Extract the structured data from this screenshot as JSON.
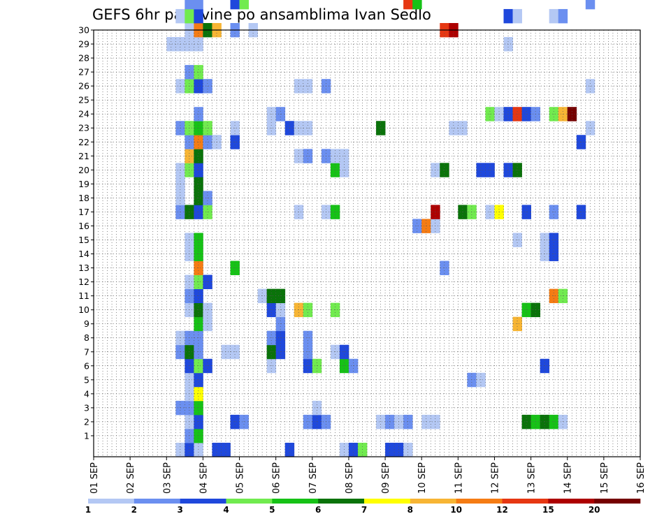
{
  "chart_data": {
    "type": "heatmap",
    "title": "GEFS 6hr padavine po ansamblima Ivan Sedlo",
    "xlabel": "",
    "ylabel": "",
    "x_tick_labels": [
      "01 SEP",
      "02 SEP",
      "03 SEP",
      "04 SEP",
      "05 SEP",
      "06 SEP",
      "07 SEP",
      "08 SEP",
      "09 SEP",
      "10 SEP",
      "11 SEP",
      "12 SEP",
      "13 SEP",
      "14 SEP",
      "15 SEP",
      "16 SEP"
    ],
    "y_tick_labels": [
      "1",
      "2",
      "3",
      "4",
      "5",
      "6",
      "7",
      "8",
      "9",
      "10",
      "11",
      "12",
      "13",
      "14",
      "15",
      "16",
      "17",
      "18",
      "19",
      "20",
      "21",
      "22",
      "23",
      "24",
      "25",
      "26",
      "27",
      "28",
      "29",
      "30"
    ],
    "ylim": [
      0,
      30
    ],
    "x_step_hours": 6,
    "grid": true,
    "colorbar": {
      "labels": [
        "1",
        "2",
        "3",
        "4",
        "5",
        "6",
        "7",
        "8",
        "10",
        "12",
        "15",
        "20"
      ],
      "colors": [
        "#b4c8f4",
        "#6b8ff0",
        "#1f48dc",
        "#71eb4f",
        "#16c216",
        "#0a730a",
        "#ffff00",
        "#f7b534",
        "#f57c14",
        "#e63712",
        "#ad0000",
        "#750000"
      ]
    },
    "cells": [
      [
        0,
        9,
        1
      ],
      [
        0,
        10,
        3
      ],
      [
        0,
        11,
        1
      ],
      [
        0,
        13,
        3
      ],
      [
        0,
        14,
        3
      ],
      [
        0,
        21,
        3
      ],
      [
        0,
        27,
        1
      ],
      [
        0,
        28,
        3
      ],
      [
        0,
        29,
        4
      ],
      [
        0,
        32,
        3
      ],
      [
        0,
        33,
        3
      ],
      [
        0,
        34,
        1
      ],
      [
        1,
        10,
        2
      ],
      [
        1,
        11,
        5
      ],
      [
        2,
        10,
        1
      ],
      [
        2,
        11,
        3
      ],
      [
        2,
        15,
        3
      ],
      [
        2,
        16,
        2
      ],
      [
        2,
        23,
        2
      ],
      [
        2,
        24,
        3
      ],
      [
        2,
        25,
        2
      ],
      [
        2,
        31,
        1
      ],
      [
        2,
        32,
        2
      ],
      [
        2,
        33,
        1
      ],
      [
        2,
        34,
        2
      ],
      [
        2,
        36,
        1
      ],
      [
        2,
        37,
        1
      ],
      [
        2,
        47,
        6
      ],
      [
        2,
        48,
        5
      ],
      [
        2,
        49,
        6
      ],
      [
        2,
        50,
        5
      ],
      [
        2,
        51,
        1
      ],
      [
        3,
        9,
        2
      ],
      [
        3,
        10,
        2
      ],
      [
        3,
        11,
        5
      ],
      [
        3,
        24,
        1
      ],
      [
        4,
        10,
        1
      ],
      [
        4,
        11,
        7
      ],
      [
        5,
        10,
        1
      ],
      [
        5,
        11,
        3
      ],
      [
        5,
        41,
        2
      ],
      [
        5,
        42,
        1
      ],
      [
        6,
        10,
        3
      ],
      [
        6,
        11,
        4
      ],
      [
        6,
        12,
        3
      ],
      [
        6,
        19,
        1
      ],
      [
        6,
        23,
        3
      ],
      [
        6,
        24,
        4
      ],
      [
        6,
        27,
        5
      ],
      [
        6,
        28,
        2
      ],
      [
        6,
        49,
        3
      ],
      [
        7,
        9,
        2
      ],
      [
        7,
        10,
        6
      ],
      [
        7,
        11,
        2
      ],
      [
        7,
        14,
        1
      ],
      [
        7,
        15,
        1
      ],
      [
        7,
        19,
        6
      ],
      [
        7,
        20,
        3
      ],
      [
        7,
        23,
        2
      ],
      [
        7,
        26,
        1
      ],
      [
        7,
        27,
        3
      ],
      [
        8,
        9,
        1
      ],
      [
        8,
        10,
        2
      ],
      [
        8,
        11,
        2
      ],
      [
        8,
        19,
        2
      ],
      [
        8,
        20,
        3
      ],
      [
        8,
        23,
        2
      ],
      [
        9,
        11,
        5
      ],
      [
        9,
        12,
        1
      ],
      [
        9,
        20,
        2
      ],
      [
        9,
        46,
        8
      ],
      [
        10,
        10,
        1
      ],
      [
        10,
        11,
        6
      ],
      [
        10,
        12,
        1
      ],
      [
        10,
        19,
        3
      ],
      [
        10,
        20,
        1
      ],
      [
        10,
        22,
        8
      ],
      [
        10,
        23,
        4
      ],
      [
        10,
        26,
        4
      ],
      [
        10,
        47,
        5
      ],
      [
        10,
        48,
        6
      ],
      [
        11,
        10,
        2
      ],
      [
        11,
        11,
        3
      ],
      [
        11,
        18,
        1
      ],
      [
        11,
        19,
        6
      ],
      [
        11,
        20,
        6
      ],
      [
        11,
        50,
        9
      ],
      [
        11,
        51,
        4
      ],
      [
        12,
        10,
        1
      ],
      [
        12,
        11,
        4
      ],
      [
        12,
        12,
        3
      ],
      [
        13,
        11,
        9
      ],
      [
        13,
        15,
        5
      ],
      [
        13,
        38,
        2
      ],
      [
        14,
        10,
        1
      ],
      [
        14,
        11,
        5
      ],
      [
        14,
        49,
        1
      ],
      [
        14,
        50,
        3
      ],
      [
        15,
        10,
        1
      ],
      [
        15,
        11,
        5
      ],
      [
        15,
        46,
        1
      ],
      [
        15,
        49,
        1
      ],
      [
        15,
        50,
        3
      ],
      [
        16,
        35,
        2
      ],
      [
        16,
        36,
        9
      ],
      [
        16,
        37,
        1
      ],
      [
        17,
        9,
        2
      ],
      [
        17,
        10,
        6
      ],
      [
        17,
        11,
        3
      ],
      [
        17,
        12,
        4
      ],
      [
        17,
        22,
        1
      ],
      [
        17,
        25,
        1
      ],
      [
        17,
        26,
        5
      ],
      [
        17,
        37,
        11
      ],
      [
        17,
        40,
        6
      ],
      [
        17,
        41,
        4
      ],
      [
        17,
        43,
        1
      ],
      [
        17,
        44,
        7
      ],
      [
        17,
        47,
        3
      ],
      [
        17,
        50,
        2
      ],
      [
        17,
        53,
        3
      ],
      [
        18,
        9,
        1
      ],
      [
        18,
        11,
        6
      ],
      [
        18,
        12,
        2
      ],
      [
        19,
        9,
        1
      ],
      [
        19,
        11,
        6
      ],
      [
        20,
        9,
        1
      ],
      [
        20,
        10,
        4
      ],
      [
        20,
        11,
        3
      ],
      [
        20,
        26,
        5
      ],
      [
        20,
        27,
        1
      ],
      [
        20,
        37,
        1
      ],
      [
        20,
        38,
        6
      ],
      [
        20,
        42,
        3
      ],
      [
        20,
        43,
        3
      ],
      [
        20,
        45,
        3
      ],
      [
        20,
        46,
        6
      ],
      [
        21,
        10,
        8
      ],
      [
        21,
        11,
        6
      ],
      [
        21,
        22,
        1
      ],
      [
        21,
        23,
        2
      ],
      [
        21,
        25,
        2
      ],
      [
        21,
        26,
        1
      ],
      [
        21,
        27,
        1
      ],
      [
        22,
        10,
        2
      ],
      [
        22,
        11,
        9
      ],
      [
        22,
        12,
        2
      ],
      [
        22,
        13,
        1
      ],
      [
        22,
        15,
        3
      ],
      [
        22,
        53,
        3
      ],
      [
        23,
        9,
        2
      ],
      [
        23,
        10,
        4
      ],
      [
        23,
        11,
        5
      ],
      [
        23,
        12,
        4
      ],
      [
        23,
        15,
        1
      ],
      [
        23,
        19,
        1
      ],
      [
        23,
        21,
        3
      ],
      [
        23,
        22,
        1
      ],
      [
        23,
        23,
        1
      ],
      [
        23,
        31,
        6
      ],
      [
        23,
        39,
        1
      ],
      [
        23,
        40,
        1
      ],
      [
        23,
        54,
        1
      ],
      [
        24,
        11,
        2
      ],
      [
        24,
        19,
        1
      ],
      [
        24,
        20,
        2
      ],
      [
        24,
        43,
        4
      ],
      [
        24,
        44,
        1
      ],
      [
        24,
        45,
        3
      ],
      [
        24,
        46,
        10
      ],
      [
        24,
        47,
        3
      ],
      [
        24,
        48,
        2
      ],
      [
        24,
        50,
        4
      ],
      [
        24,
        51,
        8
      ],
      [
        24,
        52,
        12
      ],
      [
        26,
        9,
        1
      ],
      [
        26,
        10,
        4
      ],
      [
        26,
        11,
        3
      ],
      [
        26,
        12,
        2
      ],
      [
        26,
        22,
        1
      ],
      [
        26,
        23,
        1
      ],
      [
        26,
        25,
        2
      ],
      [
        26,
        54,
        1
      ],
      [
        27,
        10,
        2
      ],
      [
        27,
        11,
        4
      ],
      [
        29,
        8,
        1
      ],
      [
        29,
        9,
        1
      ],
      [
        29,
        10,
        1
      ],
      [
        29,
        11,
        1
      ],
      [
        29,
        45,
        1
      ],
      [
        30,
        10,
        1
      ],
      [
        30,
        11,
        9
      ],
      [
        30,
        12,
        6
      ],
      [
        30,
        13,
        8
      ],
      [
        30,
        15,
        2
      ],
      [
        30,
        17,
        1
      ],
      [
        30,
        38,
        10
      ],
      [
        30,
        39,
        11
      ],
      [
        31,
        9,
        1
      ],
      [
        31,
        10,
        4
      ],
      [
        31,
        11,
        3
      ],
      [
        31,
        45,
        3
      ],
      [
        31,
        46,
        1
      ],
      [
        31,
        50,
        1
      ],
      [
        31,
        51,
        2
      ],
      [
        32,
        10,
        2
      ],
      [
        32,
        11,
        2
      ],
      [
        32,
        15,
        3
      ],
      [
        32,
        16,
        4
      ],
      [
        32,
        34,
        10
      ],
      [
        32,
        35,
        5
      ],
      [
        32,
        54,
        2
      ]
    ]
  }
}
